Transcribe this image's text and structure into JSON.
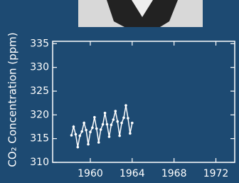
{
  "chart_data": {
    "type": "line",
    "ylabel": "CO₂ Concentration (ppm)",
    "x": [
      1958.2,
      1958.4,
      1958.6,
      1958.8,
      1959.0,
      1959.2,
      1959.4,
      1959.6,
      1959.8,
      1960.0,
      1960.2,
      1960.4,
      1960.6,
      1960.8,
      1961.0,
      1961.2,
      1961.4,
      1961.6,
      1961.8,
      1962.0,
      1962.2,
      1962.4,
      1962.6,
      1962.8,
      1963.0,
      1963.2,
      1963.4,
      1963.6,
      1963.8,
      1964.0
    ],
    "values": [
      315.7,
      317.5,
      315.9,
      313.2,
      315.6,
      316.5,
      318.3,
      316.8,
      313.8,
      316.4,
      317.3,
      319.5,
      317.1,
      314.2,
      316.9,
      318.0,
      320.4,
      318.0,
      315.4,
      317.9,
      319.0,
      320.8,
      318.6,
      315.6,
      318.3,
      319.4,
      322.0,
      319.3,
      316.1,
      318.3
    ],
    "color": "#ffffff",
    "xlim": [
      1956.4,
      1973.8
    ],
    "xticks": [
      1960,
      1964,
      1968,
      1972
    ],
    "ylim": [
      310,
      335.5
    ],
    "yticks": [
      310,
      315,
      320,
      325,
      330,
      335
    ]
  }
}
